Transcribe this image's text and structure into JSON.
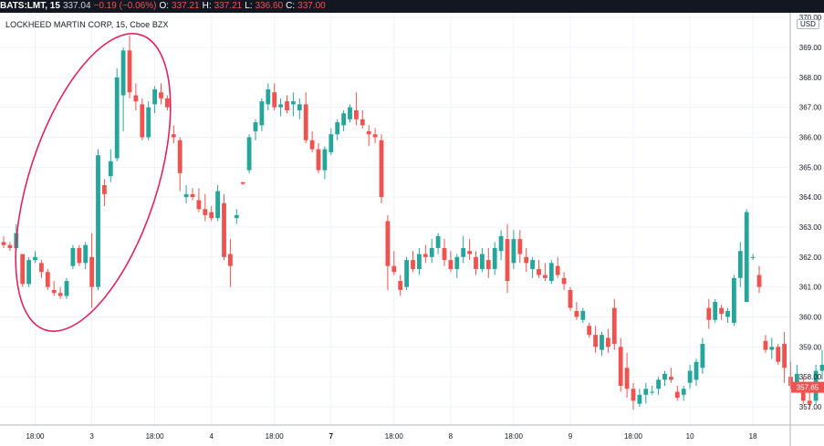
{
  "header": {
    "symbol": "BATS:LMT, 15",
    "last": "337.04",
    "change": "−0.19 (−0.06%)",
    "open_label": "O:",
    "open": "337.21",
    "high_label": "H:",
    "high": "337.21",
    "low_label": "L:",
    "low": "336.60",
    "close_label": "C:",
    "close": "337.00"
  },
  "chart_title": "LOCKHEED MARTIN CORP, 15, Cboe BZX",
  "currency": "USD",
  "colors": {
    "up": "#26a69a",
    "down": "#ef5350",
    "annotation": "#e0245e",
    "grid": "#f0f3fa"
  },
  "annotation": {
    "shape": "ellipse",
    "color": "#e0245e"
  },
  "chart_data": {
    "type": "candlestick",
    "yaxis": {
      "ticks": [
        357,
        358,
        359,
        360,
        361,
        362,
        363,
        364,
        365,
        366,
        367,
        368,
        369,
        370
      ],
      "range": [
        356.1,
        370.4
      ],
      "side": "right"
    },
    "xaxis": {
      "ticks": [
        {
          "label": "18:00",
          "i": 5
        },
        {
          "label": "3",
          "i": 14
        },
        {
          "label": "18:00",
          "i": 24
        },
        {
          "label": "4",
          "i": 33
        },
        {
          "label": "18:00",
          "i": 43
        },
        {
          "label": "7",
          "i": 52
        },
        {
          "label": "18:00",
          "i": 62
        },
        {
          "label": "8",
          "i": 71
        },
        {
          "label": "18:00",
          "i": 81
        },
        {
          "label": "9",
          "i": 90
        },
        {
          "label": "18:00",
          "i": 100
        },
        {
          "label": "10",
          "i": 109
        },
        {
          "label": "18",
          "i": 119
        }
      ]
    },
    "current_price": "357.65",
    "candles": [
      [
        362.5,
        362.7,
        362.3,
        362.4
      ],
      [
        362.4,
        362.5,
        362.2,
        362.3
      ],
      [
        362.3,
        363.1,
        362.2,
        362.8
      ],
      [
        362.1,
        362.1,
        361.0,
        361.1
      ],
      [
        361.1,
        362.0,
        361.0,
        361.9
      ],
      [
        361.9,
        362.2,
        361.8,
        362.0
      ],
      [
        361.8,
        361.9,
        361.3,
        361.5
      ],
      [
        361.5,
        361.6,
        360.9,
        361.0
      ],
      [
        360.9,
        361.2,
        360.7,
        360.8
      ],
      [
        360.8,
        361.0,
        360.6,
        360.7
      ],
      [
        360.7,
        361.3,
        360.6,
        361.2
      ],
      [
        361.7,
        362.4,
        361.6,
        362.3
      ],
      [
        362.3,
        362.4,
        361.7,
        361.8
      ],
      [
        361.8,
        362.5,
        361.6,
        362.4
      ],
      [
        362.0,
        362.8,
        360.3,
        361.0
      ],
      [
        361.0,
        365.6,
        360.9,
        365.4
      ],
      [
        364.4,
        364.6,
        363.7,
        364.1
      ],
      [
        364.7,
        365.6,
        364.5,
        365.2
      ],
      [
        365.3,
        368.3,
        365.2,
        368.0
      ],
      [
        367.4,
        369.0,
        366.2,
        368.9
      ],
      [
        368.9,
        369.4,
        367.3,
        367.5
      ],
      [
        367.4,
        367.8,
        366.9,
        367.2
      ],
      [
        367.1,
        367.3,
        365.9,
        366.0
      ],
      [
        366.0,
        367.2,
        365.9,
        367.0
      ],
      [
        367.1,
        367.7,
        366.8,
        367.6
      ],
      [
        367.5,
        367.8,
        367.1,
        367.3
      ],
      [
        367.3,
        367.4,
        366.9,
        367.0
      ],
      [
        366.1,
        366.4,
        365.8,
        366.0
      ],
      [
        365.9,
        366.0,
        364.2,
        364.8
      ],
      [
        364.0,
        364.4,
        363.8,
        364.1
      ],
      [
        364.1,
        364.3,
        363.9,
        364.0
      ],
      [
        363.9,
        364.3,
        363.5,
        363.6
      ],
      [
        363.6,
        364.1,
        363.2,
        363.4
      ],
      [
        363.5,
        363.7,
        363.2,
        363.3
      ],
      [
        363.3,
        364.4,
        363.2,
        364.2
      ],
      [
        363.8,
        364.1,
        361.9,
        362.0
      ],
      [
        362.1,
        362.6,
        361.0,
        361.7
      ],
      [
        363.3,
        363.6,
        363.1,
        363.4
      ],
      [
        364.5,
        364.5,
        364.4,
        364.45
      ],
      [
        364.9,
        366.1,
        364.8,
        366.0
      ],
      [
        366.2,
        366.6,
        365.9,
        366.5
      ],
      [
        366.4,
        367.3,
        366.2,
        367.2
      ],
      [
        367.1,
        367.8,
        366.9,
        367.6
      ],
      [
        367.5,
        367.8,
        366.9,
        367.0
      ],
      [
        367.0,
        367.3,
        366.7,
        367.1
      ],
      [
        367.2,
        367.4,
        366.8,
        366.9
      ],
      [
        367.1,
        367.5,
        366.7,
        367.2
      ],
      [
        366.9,
        367.3,
        366.6,
        367.1
      ],
      [
        367.1,
        367.5,
        365.8,
        365.9
      ],
      [
        365.9,
        366.2,
        365.5,
        365.6
      ],
      [
        365.6,
        365.8,
        364.8,
        364.9
      ],
      [
        364.9,
        365.7,
        364.6,
        365.6
      ],
      [
        365.5,
        366.3,
        365.4,
        366.1
      ],
      [
        366.1,
        366.6,
        365.9,
        366.5
      ],
      [
        366.4,
        366.9,
        366.2,
        366.8
      ],
      [
        366.6,
        367.1,
        366.5,
        367.0
      ],
      [
        366.9,
        367.5,
        366.4,
        366.6
      ],
      [
        366.6,
        366.9,
        366.3,
        366.4
      ],
      [
        366.2,
        366.4,
        365.7,
        366.1
      ],
      [
        366.1,
        366.3,
        365.8,
        366.0
      ],
      [
        365.9,
        366.1,
        363.8,
        364.0
      ],
      [
        363.2,
        363.4,
        360.9,
        361.7
      ],
      [
        361.7,
        362.2,
        361.4,
        361.5
      ],
      [
        361.2,
        361.4,
        360.7,
        360.9
      ],
      [
        361.0,
        362.0,
        360.9,
        361.9
      ],
      [
        361.9,
        362.2,
        361.5,
        361.6
      ],
      [
        361.6,
        362.3,
        361.4,
        362.1
      ],
      [
        362.1,
        362.4,
        361.8,
        362.0
      ],
      [
        362.0,
        362.6,
        361.8,
        362.3
      ],
      [
        362.3,
        362.8,
        362.1,
        362.7
      ],
      [
        362.3,
        362.6,
        361.7,
        361.9
      ],
      [
        361.9,
        362.2,
        361.5,
        361.6
      ],
      [
        361.6,
        362.1,
        361.3,
        362.0
      ],
      [
        362.0,
        362.7,
        361.8,
        362.3
      ],
      [
        362.2,
        362.6,
        361.9,
        362.1
      ],
      [
        362.0,
        362.2,
        361.4,
        361.6
      ],
      [
        361.6,
        362.3,
        361.5,
        362.1
      ],
      [
        361.9,
        362.3,
        361.3,
        361.6
      ],
      [
        361.6,
        362.5,
        361.4,
        362.3
      ],
      [
        362.2,
        362.9,
        361.9,
        362.7
      ],
      [
        362.6,
        363.1,
        360.8,
        361.2
      ],
      [
        361.8,
        362.9,
        361.6,
        362.6
      ],
      [
        362.6,
        362.9,
        361.8,
        362.1
      ],
      [
        362.0,
        362.3,
        361.5,
        361.8
      ],
      [
        361.6,
        362.0,
        361.3,
        361.9
      ],
      [
        361.6,
        361.9,
        361.3,
        361.4
      ],
      [
        361.4,
        361.8,
        361.2,
        361.3
      ],
      [
        361.2,
        361.9,
        361.1,
        361.8
      ],
      [
        361.7,
        362.0,
        361.3,
        361.4
      ],
      [
        361.3,
        361.5,
        360.9,
        361.1
      ],
      [
        360.9,
        361.0,
        360.2,
        360.3
      ],
      [
        360.2,
        360.5,
        359.9,
        360.0
      ],
      [
        359.9,
        360.3,
        359.8,
        360.2
      ],
      [
        359.7,
        359.8,
        359.3,
        359.4
      ],
      [
        359.4,
        359.7,
        358.8,
        359.0
      ],
      [
        358.9,
        359.5,
        358.7,
        359.4
      ],
      [
        359.3,
        359.6,
        358.8,
        359.0
      ],
      [
        360.3,
        360.6,
        358.9,
        359.1
      ],
      [
        359.0,
        359.3,
        357.5,
        357.7
      ],
      [
        358.3,
        358.8,
        357.3,
        357.6
      ],
      [
        357.6,
        357.8,
        356.9,
        357.2
      ],
      [
        357.1,
        357.6,
        357.0,
        357.4
      ],
      [
        357.4,
        357.8,
        357.1,
        357.6
      ],
      [
        357.5,
        357.7,
        357.4,
        357.5
      ],
      [
        357.6,
        358.0,
        357.4,
        357.9
      ],
      [
        357.9,
        358.2,
        357.7,
        358.1
      ],
      [
        358.0,
        358.3,
        357.8,
        357.9
      ],
      [
        357.5,
        357.7,
        357.2,
        357.3
      ],
      [
        357.4,
        357.7,
        357.2,
        357.6
      ],
      [
        357.8,
        358.4,
        357.6,
        358.2
      ],
      [
        357.9,
        358.6,
        357.7,
        358.5
      ],
      [
        358.3,
        359.3,
        358.1,
        359.1
      ],
      [
        360.3,
        360.6,
        359.6,
        359.9
      ],
      [
        359.9,
        360.6,
        359.8,
        360.5
      ],
      [
        360.3,
        360.4,
        359.9,
        360.1
      ],
      [
        360.0,
        360.3,
        359.8,
        360.2
      ],
      [
        359.8,
        361.4,
        359.7,
        361.3
      ],
      [
        361.3,
        362.5,
        361.0,
        362.2
      ],
      [
        360.5,
        363.6,
        360.5,
        363.5
      ],
      [
        362.0,
        362.1,
        361.9,
        362.0
      ],
      [
        361.4,
        361.7,
        360.8,
        361.0
      ],
      [
        359.2,
        359.4,
        358.8,
        358.9
      ],
      [
        358.9,
        359.3,
        358.6,
        359.0
      ],
      [
        359.0,
        359.1,
        358.4,
        358.5
      ],
      [
        359.1,
        359.5,
        357.8,
        358.3
      ],
      [
        358.0,
        358.5,
        357.6,
        357.7
      ],
      [
        357.8,
        358.4,
        357.5,
        358.1
      ],
      [
        357.5,
        358.0,
        357.1,
        357.2
      ],
      [
        357.2,
        357.6,
        356.9,
        357.1
      ],
      [
        357.2,
        358.4,
        357.1,
        358.2
      ],
      [
        358.2,
        358.9,
        357.9,
        358.4
      ],
      [
        358.2,
        358.5,
        357.4,
        357.7
      ]
    ]
  }
}
